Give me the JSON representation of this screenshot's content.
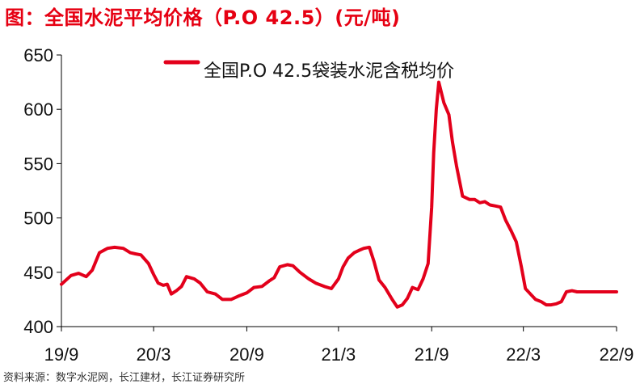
{
  "header": {
    "title": "图：全国水泥平均价格（P.O 42.5）(元/吨)"
  },
  "footer": {
    "source": "资料来源：数字水泥网，长江建材，长江证券研究所"
  },
  "colors": {
    "title": "#e60012",
    "series": "#e3001b",
    "axis": "#000000",
    "text": "#111111"
  },
  "chart_data": {
    "type": "line",
    "title": "",
    "xlabel": "",
    "ylabel": "",
    "ylim": [
      400,
      650
    ],
    "yticks": [
      400,
      450,
      500,
      550,
      600,
      650
    ],
    "x_range": [
      "2019-09",
      "2022-09"
    ],
    "xticks": [
      {
        "x": "2019-09",
        "label": "19/9"
      },
      {
        "x": "2020-03",
        "label": "20/3"
      },
      {
        "x": "2020-09",
        "label": "20/9"
      },
      {
        "x": "2021-03",
        "label": "21/3"
      },
      {
        "x": "2021-09",
        "label": "21/9"
      },
      {
        "x": "2022-03",
        "label": "22/3"
      },
      {
        "x": "2022-09",
        "label": "22/9"
      }
    ],
    "grid": false,
    "legend": "top-center",
    "series": [
      {
        "name": "全国P.O 42.5袋装水泥含税均价",
        "x": [
          "2019-09-01",
          "2019-09-20",
          "2019-10-05",
          "2019-10-20",
          "2019-11-01",
          "2019-11-15",
          "2019-12-01",
          "2019-12-15",
          "2020-01-01",
          "2020-01-15",
          "2020-01-25",
          "2020-02-05",
          "2020-02-20",
          "2020-03-01",
          "2020-03-10",
          "2020-03-20",
          "2020-03-28",
          "2020-04-05",
          "2020-04-15",
          "2020-04-25",
          "2020-05-05",
          "2020-05-20",
          "2020-06-01",
          "2020-06-15",
          "2020-07-01",
          "2020-07-15",
          "2020-08-01",
          "2020-08-15",
          "2020-09-01",
          "2020-09-15",
          "2020-10-01",
          "2020-10-15",
          "2020-10-25",
          "2020-11-05",
          "2020-11-20",
          "2020-12-01",
          "2020-12-15",
          "2021-01-01",
          "2021-01-15",
          "2021-02-01",
          "2021-02-15",
          "2021-03-01",
          "2021-03-10",
          "2021-03-20",
          "2021-04-01",
          "2021-04-10",
          "2021-04-20",
          "2021-05-01",
          "2021-05-10",
          "2021-05-20",
          "2021-06-01",
          "2021-06-15",
          "2021-06-25",
          "2021-07-05",
          "2021-07-15",
          "2021-07-25",
          "2021-08-05",
          "2021-08-15",
          "2021-08-25",
          "2021-09-01",
          "2021-09-05",
          "2021-09-10",
          "2021-09-15",
          "2021-09-25",
          "2021-10-05",
          "2021-10-12",
          "2021-10-20",
          "2021-11-01",
          "2021-11-15",
          "2021-11-25",
          "2021-12-05",
          "2021-12-15",
          "2021-12-25",
          "2022-01-05",
          "2022-01-15",
          "2022-01-25",
          "2022-02-05",
          "2022-02-15",
          "2022-02-25",
          "2022-03-05",
          "2022-03-15",
          "2022-03-25",
          "2022-04-05",
          "2022-04-15",
          "2022-04-25",
          "2022-05-05",
          "2022-05-15",
          "2022-05-25",
          "2022-06-05",
          "2022-06-15",
          "2022-06-25",
          "2022-07-05",
          "2022-07-15",
          "2022-07-25",
          "2022-08-05",
          "2022-08-15",
          "2022-08-25",
          "2022-09-01"
        ],
        "values": [
          439,
          447,
          449,
          446,
          452,
          468,
          472,
          473,
          472,
          468,
          467,
          466,
          458,
          448,
          440,
          438,
          439,
          430,
          433,
          437,
          446,
          444,
          440,
          432,
          430,
          425,
          425,
          428,
          431,
          436,
          437,
          442,
          445,
          455,
          457,
          456,
          450,
          444,
          440,
          437,
          435,
          444,
          455,
          463,
          468,
          470,
          472,
          473,
          460,
          443,
          436,
          425,
          418,
          420,
          426,
          436,
          434,
          444,
          458,
          510,
          560,
          600,
          625,
          606,
          595,
          570,
          548,
          520,
          517,
          517,
          514,
          515,
          512,
          511,
          510,
          498,
          488,
          478,
          455,
          435,
          430,
          425,
          423,
          420,
          420,
          421,
          423,
          432,
          433,
          432,
          432,
          432,
          432,
          432,
          432,
          432,
          432,
          432
        ]
      }
    ]
  }
}
